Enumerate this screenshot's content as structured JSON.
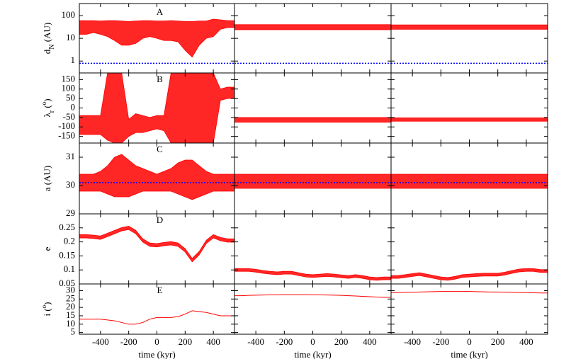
{
  "chart_data": {
    "type": "multi-panel",
    "xlim": [
      -550,
      550
    ],
    "xticks": [
      -400,
      -200,
      0,
      200,
      400
    ],
    "xlabel": "time (kyr)",
    "x": [
      -550,
      -500,
      -450,
      -400,
      -350,
      -300,
      -250,
      -200,
      -150,
      -100,
      -50,
      0,
      50,
      100,
      150,
      200,
      250,
      300,
      350,
      400,
      450,
      500,
      550
    ],
    "rows": [
      {
        "label": "A",
        "ylabel": [
          {
            "text": "d"
          },
          {
            "text": "N",
            "pos": "sub"
          },
          {
            "text": " (AU)"
          }
        ],
        "log": true,
        "ylim": [
          0.3,
          340
        ],
        "yticks": [
          1,
          10,
          100
        ],
        "reference": {
          "value": 0.8,
          "color": "#0000ff"
        },
        "panels": [
          {
            "type": "band",
            "color": "#ff0000",
            "low": [
              15,
              15,
              18,
              15,
              12,
              8,
              5,
              5,
              6,
              10,
              12,
              10,
              8,
              8,
              7,
              3,
              1.5,
              5,
              10,
              12,
              25,
              30,
              30
            ],
            "high": [
              60,
              60,
              60,
              58,
              60,
              60,
              58,
              55,
              58,
              60,
              60,
              58,
              58,
              60,
              58,
              55,
              55,
              58,
              58,
              70,
              65,
              60,
              60
            ]
          },
          {
            "type": "band",
            "color": "#ff0000",
            "low": [
              24,
              24,
              24,
              24,
              24,
              24,
              24,
              24,
              24,
              24,
              24,
              24,
              24,
              24,
              24,
              24,
              24,
              24,
              24,
              24,
              24,
              24,
              24
            ],
            "high": [
              40,
              40,
              40,
              40,
              40,
              40,
              40,
              40,
              40,
              40,
              40,
              40,
              40,
              40,
              40,
              40,
              40,
              40,
              40,
              40,
              40,
              40,
              40
            ]
          },
          {
            "type": "band",
            "color": "#ff0000",
            "low": [
              25,
              25,
              25,
              25,
              25,
              25,
              25,
              25,
              25,
              25,
              25,
              25,
              25,
              25,
              25,
              25,
              25,
              25,
              25,
              25,
              25,
              25,
              25
            ],
            "high": [
              39,
              39,
              39,
              39,
              39,
              39,
              39,
              39,
              39,
              39,
              39,
              39,
              39,
              39,
              39,
              39,
              39,
              39,
              39,
              39,
              39,
              39,
              39
            ]
          }
        ]
      },
      {
        "label": "B",
        "ylabel": [
          {
            "text": "λ"
          },
          {
            "text": "r",
            "pos": "sub"
          },
          {
            "text": " ("
          },
          {
            "text": "o",
            "pos": "sup"
          },
          {
            "text": ")"
          }
        ],
        "log": false,
        "ylim": [
          -185,
          185
        ],
        "yticks": [
          150,
          100,
          50,
          0,
          -50,
          -100,
          -150
        ],
        "panels": [
          {
            "type": "band",
            "color": "#ff0000",
            "low": [
              -140,
              -140,
              -140,
              -140,
              -170,
              -185,
              -185,
              -150,
              -130,
              -130,
              -120,
              -110,
              -120,
              -185,
              -185,
              -185,
              -185,
              -185,
              -185,
              -185,
              40,
              50,
              50
            ],
            "high": [
              -40,
              -40,
              -40,
              -40,
              185,
              185,
              185,
              -60,
              -30,
              -40,
              -50,
              -40,
              -40,
              185,
              185,
              185,
              185,
              185,
              185,
              185,
              100,
              110,
              110
            ]
          },
          {
            "type": "band",
            "color": "#ff0000",
            "low": [
              -75,
              -75,
              -75,
              -75,
              -75,
              -75,
              -75,
              -75,
              -75,
              -75,
              -75,
              -75,
              -75,
              -75,
              -75,
              -75,
              -75,
              -75,
              -75,
              -75,
              -75,
              -75,
              -75
            ],
            "high": [
              -50,
              -50,
              -50,
              -50,
              -50,
              -50,
              -50,
              -50,
              -50,
              -50,
              -50,
              -50,
              -50,
              -50,
              -50,
              -50,
              -50,
              -50,
              -50,
              -50,
              -50,
              -50,
              -50
            ]
          },
          {
            "type": "band",
            "color": "#ff0000",
            "low": [
              -70,
              -70,
              -70,
              -70,
              -70,
              -70,
              -70,
              -70,
              -70,
              -70,
              -70,
              -70,
              -70,
              -70,
              -70,
              -70,
              -70,
              -70,
              -70,
              -70,
              -70,
              -70,
              -70
            ],
            "high": [
              -52,
              -52,
              -52,
              -52,
              -52,
              -52,
              -52,
              -52,
              -52,
              -52,
              -52,
              -52,
              -52,
              -52,
              -52,
              -52,
              -52,
              -52,
              -52,
              -52,
              -52,
              -52,
              -52
            ]
          }
        ]
      },
      {
        "label": "C",
        "ylabel": [
          {
            "text": "a (AU)"
          }
        ],
        "log": false,
        "ylim": [
          29,
          31.5
        ],
        "yticks": [
          29,
          30,
          31
        ],
        "reference": {
          "value": 30.1,
          "color": "#0000ff"
        },
        "panels": [
          {
            "type": "band",
            "color": "#ff0000",
            "low": [
              29.8,
              29.8,
              29.8,
              29.8,
              29.7,
              29.6,
              29.6,
              29.6,
              29.7,
              29.8,
              29.8,
              29.8,
              29.8,
              29.8,
              29.7,
              29.6,
              29.5,
              29.6,
              29.7,
              29.8,
              29.8,
              29.8,
              29.8
            ],
            "high": [
              30.4,
              30.4,
              30.4,
              30.5,
              30.7,
              31.0,
              31.1,
              30.9,
              30.7,
              30.6,
              30.5,
              30.4,
              30.5,
              30.6,
              30.8,
              30.9,
              30.9,
              30.7,
              30.5,
              30.4,
              30.4,
              30.4,
              30.4
            ]
          },
          {
            "type": "band",
            "color": "#ff0000",
            "low": [
              29.9,
              29.9,
              29.9,
              29.9,
              29.9,
              29.9,
              29.9,
              29.9,
              29.9,
              29.9,
              29.9,
              29.9,
              29.9,
              29.9,
              29.9,
              29.9,
              29.9,
              29.9,
              29.9,
              29.9,
              29.9,
              29.9,
              29.9
            ],
            "high": [
              30.4,
              30.4,
              30.4,
              30.4,
              30.4,
              30.4,
              30.4,
              30.4,
              30.4,
              30.4,
              30.4,
              30.4,
              30.4,
              30.4,
              30.4,
              30.4,
              30.4,
              30.4,
              30.4,
              30.4,
              30.4,
              30.4,
              30.4
            ]
          },
          {
            "type": "band",
            "color": "#ff0000",
            "low": [
              29.9,
              29.9,
              29.9,
              29.9,
              29.9,
              29.9,
              29.9,
              29.9,
              29.9,
              29.9,
              29.9,
              29.9,
              29.9,
              29.9,
              29.9,
              29.9,
              29.9,
              29.9,
              29.9,
              29.9,
              29.9,
              29.9,
              29.9
            ],
            "high": [
              30.4,
              30.4,
              30.4,
              30.4,
              30.4,
              30.4,
              30.4,
              30.4,
              30.4,
              30.4,
              30.4,
              30.4,
              30.4,
              30.4,
              30.4,
              30.4,
              30.4,
              30.4,
              30.4,
              30.4,
              30.4,
              30.4,
              30.4
            ]
          }
        ]
      },
      {
        "label": "D",
        "ylabel": [
          {
            "text": "e"
          }
        ],
        "log": false,
        "ylim": [
          0.05,
          0.3
        ],
        "yticks": [
          0.25,
          0.2,
          0.15,
          0.1,
          0.05
        ],
        "panels": [
          {
            "type": "band",
            "color": "#ff0000",
            "low": [
              0.214,
              0.214,
              0.212,
              0.209,
              0.219,
              0.229,
              0.239,
              0.244,
              0.229,
              0.199,
              0.184,
              0.182,
              0.186,
              0.189,
              0.184,
              0.164,
              0.129,
              0.154,
              0.194,
              0.214,
              0.204,
              0.199,
              0.199
            ],
            "high": [
              0.226,
              0.226,
              0.224,
              0.221,
              0.231,
              0.241,
              0.251,
              0.256,
              0.241,
              0.211,
              0.196,
              0.194,
              0.198,
              0.201,
              0.196,
              0.176,
              0.141,
              0.166,
              0.206,
              0.226,
              0.216,
              0.211,
              0.211
            ]
          },
          {
            "type": "band",
            "color": "#ff0000",
            "low": [
              0.095,
              0.095,
              0.095,
              0.092,
              0.088,
              0.085,
              0.083,
              0.085,
              0.085,
              0.08,
              0.075,
              0.073,
              0.075,
              0.077,
              0.075,
              0.072,
              0.07,
              0.073,
              0.07,
              0.065,
              0.063,
              0.065,
              0.065
            ],
            "high": [
              0.105,
              0.105,
              0.105,
              0.102,
              0.098,
              0.095,
              0.093,
              0.095,
              0.095,
              0.09,
              0.085,
              0.083,
              0.085,
              0.087,
              0.085,
              0.082,
              0.08,
              0.083,
              0.08,
              0.075,
              0.073,
              0.075,
              0.075
            ]
          },
          {
            "type": "band",
            "color": "#ff0000",
            "low": [
              0.07,
              0.07,
              0.073,
              0.077,
              0.08,
              0.075,
              0.07,
              0.065,
              0.063,
              0.067,
              0.073,
              0.075,
              0.077,
              0.078,
              0.078,
              0.078,
              0.082,
              0.088,
              0.093,
              0.095,
              0.095,
              0.091,
              0.091
            ],
            "high": [
              0.08,
              0.08,
              0.083,
              0.087,
              0.09,
              0.085,
              0.08,
              0.075,
              0.073,
              0.077,
              0.083,
              0.085,
              0.087,
              0.088,
              0.088,
              0.088,
              0.092,
              0.098,
              0.103,
              0.105,
              0.105,
              0.101,
              0.101
            ]
          }
        ]
      },
      {
        "label": "E",
        "ylabel": [
          {
            "text": "i ("
          },
          {
            "text": "o",
            "pos": "sup"
          },
          {
            "text": ")"
          }
        ],
        "log": false,
        "ylim": [
          4,
          34
        ],
        "yticks": [
          5,
          10,
          15,
          20,
          25,
          30
        ],
        "panels": [
          {
            "type": "line",
            "color": "#ff0000",
            "values": [
              13,
              13,
              13,
              13,
              12.5,
              12,
              11,
              10,
              10,
              11,
              13,
              14,
              14,
              14,
              14.5,
              16,
              18,
              17.5,
              17,
              16,
              15,
              15,
              15
            ]
          },
          {
            "type": "line",
            "color": "#ff0000",
            "values": [
              27,
              27,
              27.2,
              27.3,
              27.4,
              27.5,
              27.5,
              27.6,
              27.6,
              27.6,
              27.6,
              27.5,
              27.5,
              27.4,
              27.3,
              27.2,
              27,
              26.8,
              26.6,
              26.4,
              26.2,
              26,
              26
            ]
          },
          {
            "type": "line",
            "color": "#ff0000",
            "values": [
              28.8,
              28.8,
              29,
              29.1,
              29.2,
              29.3,
              29.4,
              29.5,
              29.5,
              29.5,
              29.5,
              29.5,
              29.4,
              29.3,
              29.2,
              29.2,
              29.1,
              29,
              28.9,
              28.8,
              28.7,
              28.6,
              28.6
            ]
          }
        ]
      }
    ]
  }
}
